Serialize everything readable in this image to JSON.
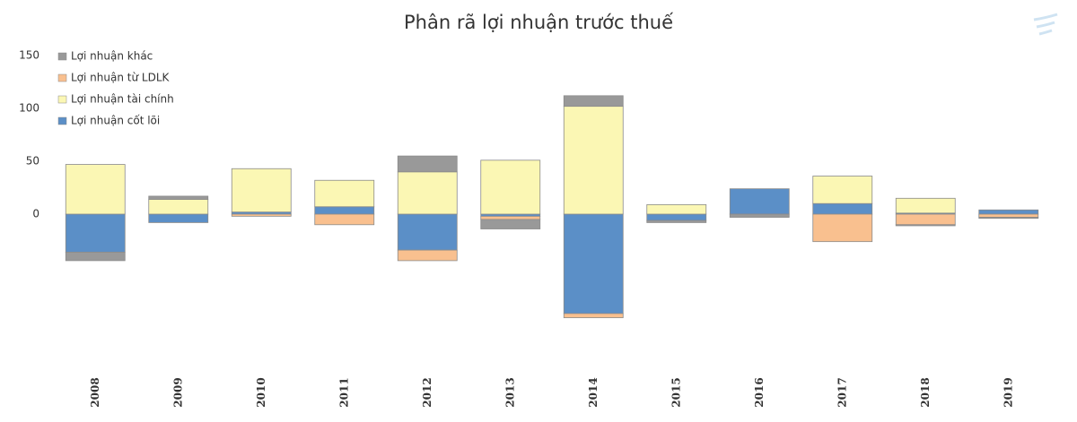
{
  "chart_data": {
    "type": "stacked-bar",
    "title": "Phân rã lợi nhuận trước thuế",
    "categories": [
      "2008",
      "2009",
      "2010",
      "2011",
      "2012",
      "2013",
      "2014",
      "2015",
      "2016",
      "2017",
      "2018",
      "2019"
    ],
    "series": [
      {
        "name": "Lợi nhuận cốt lõi",
        "color": "#5b8fc7",
        "values": [
          -36,
          -8,
          2,
          7,
          -34,
          -2,
          -94,
          -6,
          24,
          10,
          1,
          4
        ]
      },
      {
        "name": "Lợi nhuận tài chính",
        "color": "#fbf7b4",
        "values": [
          47,
          14,
          41,
          25,
          40,
          51,
          102,
          9,
          0,
          26,
          14,
          0
        ]
      },
      {
        "name": "Lợi nhuận từ LDLK",
        "color": "#f9c08f",
        "values": [
          0,
          0,
          -2,
          -10,
          -10,
          -3,
          -4,
          0,
          0,
          -26,
          -10,
          -3
        ]
      },
      {
        "name": "Lợi nhuận khác",
        "color": "#999999",
        "values": [
          -8,
          3,
          0,
          0,
          15,
          -9,
          10,
          -2,
          -3,
          0,
          -1,
          -1
        ]
      }
    ],
    "ylim": [
      -150,
      150
    ],
    "yticks": [
      0,
      50,
      100,
      150
    ],
    "grid": false,
    "legend": "top-left"
  }
}
